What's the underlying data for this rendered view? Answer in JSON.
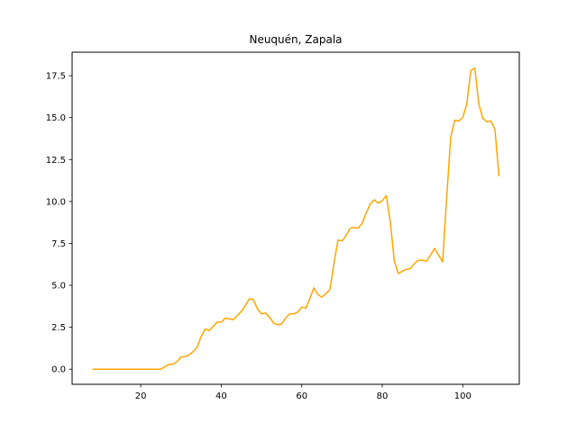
{
  "chart_data": {
    "type": "line",
    "title": "Neuquén, Zapala",
    "xlabel": "",
    "ylabel": "",
    "xlim": [
      2.95,
      114.05
    ],
    "ylim": [
      -0.9,
      18.9
    ],
    "x_ticks": [
      20,
      40,
      60,
      80,
      100
    ],
    "y_ticks": [
      0.0,
      2.5,
      5.0,
      7.5,
      10.0,
      12.5,
      15.0,
      17.5
    ],
    "x_tick_labels": [
      "20",
      "40",
      "60",
      "80",
      "100"
    ],
    "y_tick_labels": [
      "0.0",
      "2.5",
      "5.0",
      "7.5",
      "10.0",
      "12.5",
      "15.0",
      "17.5"
    ],
    "grid": false,
    "legend": "none",
    "series": [
      {
        "color": "#FFA500",
        "x": [
          8,
          9,
          10,
          11,
          12,
          13,
          14,
          15,
          16,
          17,
          18,
          19,
          20,
          21,
          22,
          23,
          24,
          25,
          26,
          27,
          28,
          29,
          30,
          31,
          32,
          33,
          34,
          35,
          36,
          37,
          38,
          39,
          40,
          41,
          42,
          43,
          44,
          45,
          46,
          47,
          48,
          49,
          50,
          51,
          52,
          53,
          54,
          55,
          56,
          57,
          58,
          59,
          60,
          61,
          62,
          63,
          64,
          65,
          66,
          67,
          68,
          69,
          70,
          71,
          72,
          73,
          74,
          75,
          76,
          77,
          78,
          79,
          80,
          81,
          82,
          83,
          84,
          85,
          86,
          87,
          88,
          89,
          90,
          91,
          92,
          93,
          94,
          95,
          96,
          97,
          98,
          99,
          100,
          101,
          102,
          103,
          104,
          105,
          106,
          107,
          108,
          109
        ],
        "y": [
          0.0,
          0.0,
          0.0,
          0.0,
          0.0,
          0.0,
          0.0,
          0.0,
          0.0,
          0.0,
          0.0,
          0.0,
          0.0,
          0.0,
          0.0,
          0.0,
          0.0,
          0.0,
          0.15,
          0.28,
          0.3,
          0.45,
          0.72,
          0.75,
          0.85,
          1.05,
          1.3,
          1.95,
          2.4,
          2.3,
          2.55,
          2.8,
          2.8,
          3.05,
          3.0,
          2.95,
          3.2,
          3.45,
          3.8,
          4.2,
          4.15,
          3.6,
          3.3,
          3.35,
          3.1,
          2.75,
          2.65,
          2.7,
          3.05,
          3.3,
          3.3,
          3.4,
          3.7,
          3.65,
          4.2,
          4.85,
          4.45,
          4.3,
          4.5,
          4.75,
          6.3,
          7.7,
          7.65,
          7.95,
          8.4,
          8.45,
          8.4,
          8.7,
          9.3,
          9.85,
          10.1,
          9.9,
          10.05,
          10.35,
          8.8,
          6.45,
          5.7,
          5.85,
          5.95,
          6.0,
          6.3,
          6.5,
          6.5,
          6.45,
          6.8,
          7.2,
          6.8,
          6.4,
          10.2,
          13.8,
          14.85,
          14.8,
          15.0,
          15.8,
          17.8,
          17.95,
          15.8,
          14.95,
          14.75,
          14.8,
          14.3,
          11.5
        ]
      }
    ]
  }
}
